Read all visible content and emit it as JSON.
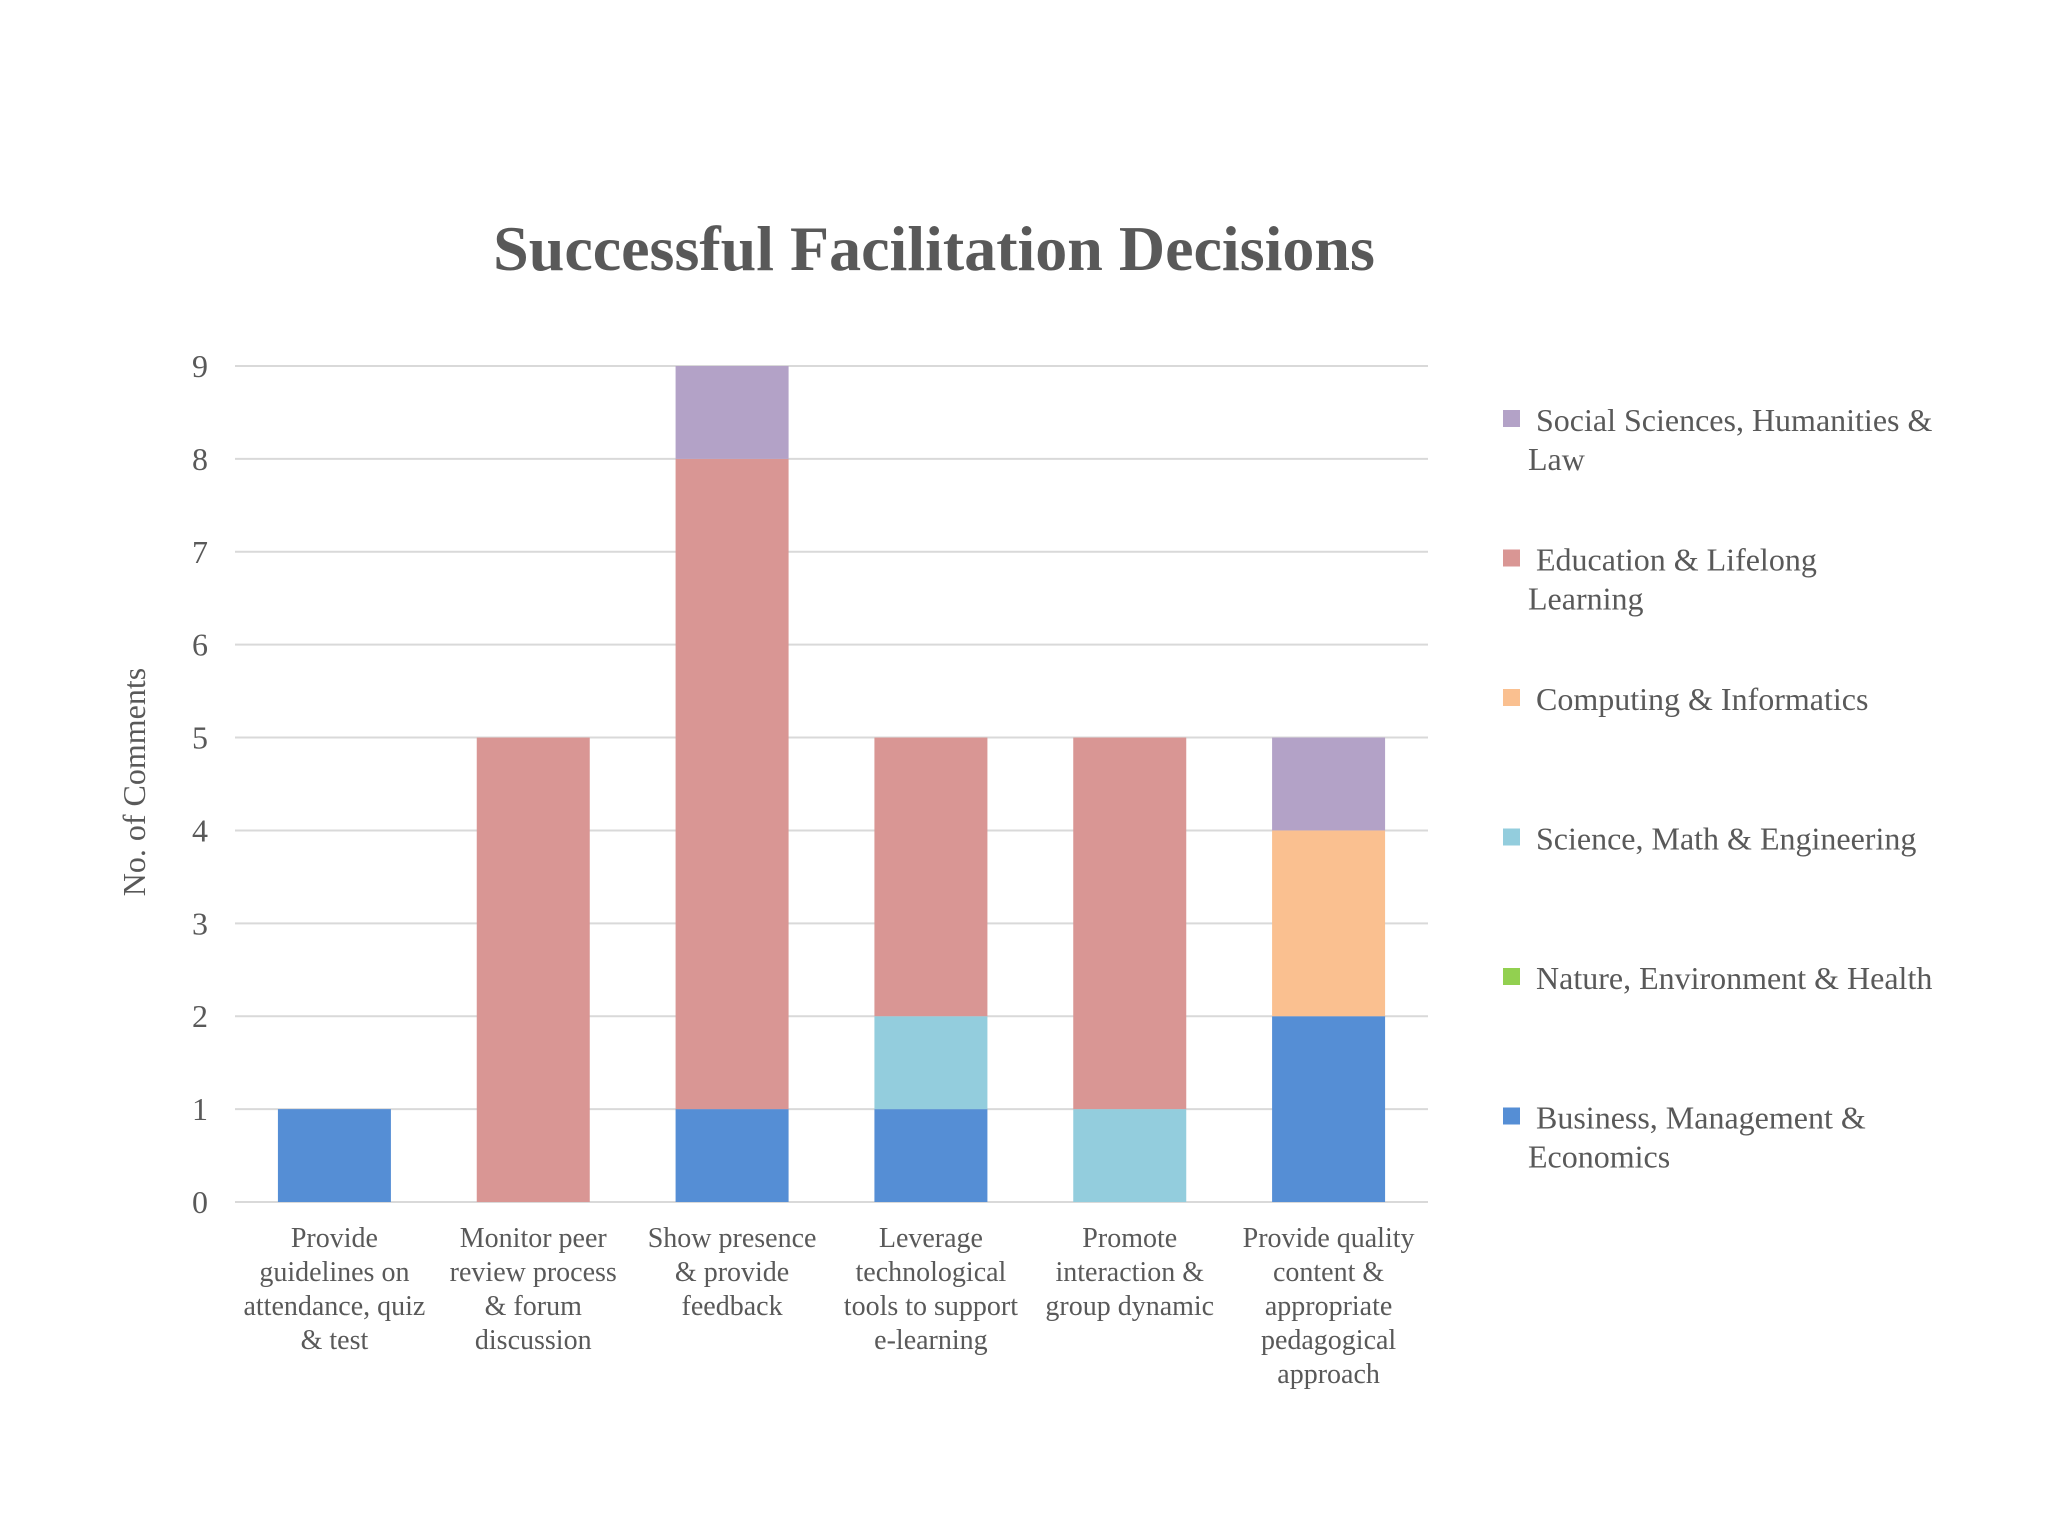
{
  "chart_data": {
    "type": "bar",
    "stacked": true,
    "title": "Successful Facilitation Decisions",
    "xlabel": "",
    "ylabel": "No. of Comments",
    "ylim": [
      0,
      9
    ],
    "yticks": [
      0,
      1,
      2,
      3,
      4,
      5,
      6,
      7,
      8,
      9
    ],
    "grid": true,
    "legend_position": "right",
    "categories": [
      [
        "Provide",
        "guidelines on",
        "attendance, quiz",
        "& test"
      ],
      [
        "Monitor peer",
        "review  process",
        "& forum",
        "discussion"
      ],
      [
        "Show presence",
        "& provide",
        "feedback"
      ],
      [
        "Leverage",
        "technological",
        "tools to support",
        "e-learning"
      ],
      [
        "Promote",
        "interaction &",
        "group dynamic"
      ],
      [
        "Provide quality",
        "content &",
        "appropriate",
        "pedagogical",
        "approach"
      ]
    ],
    "series": [
      {
        "name": "Business, Management & Economics",
        "legend_lines": [
          "Business, Management &",
          "Economics"
        ],
        "color": "#558ed5",
        "values": [
          1,
          0,
          1,
          1,
          0,
          2
        ]
      },
      {
        "name": "Nature, Environment & Health",
        "legend_lines": [
          "Nature, Environment & Health"
        ],
        "color": "#92d050",
        "values": [
          0,
          0,
          0,
          0,
          0,
          0
        ]
      },
      {
        "name": "Science, Math & Engineering",
        "legend_lines": [
          "Science, Math & Engineering"
        ],
        "color": "#93cddd",
        "values": [
          0,
          0,
          0,
          1,
          1,
          0
        ]
      },
      {
        "name": "Computing & Informatics",
        "legend_lines": [
          "Computing & Informatics"
        ],
        "color": "#fac090",
        "values": [
          0,
          0,
          0,
          0,
          0,
          2
        ]
      },
      {
        "name": "Education & Lifelong Learning",
        "legend_lines": [
          "Education & Lifelong",
          "Learning"
        ],
        "color": "#d99694",
        "values": [
          0,
          5,
          7,
          3,
          4,
          0
        ]
      },
      {
        "name": "Social Sciences, Humanities & Law",
        "legend_lines": [
          "Social Sciences, Humanities &",
          "Law"
        ],
        "color": "#b3a2c7",
        "values": [
          0,
          0,
          1,
          0,
          0,
          1
        ]
      }
    ]
  }
}
